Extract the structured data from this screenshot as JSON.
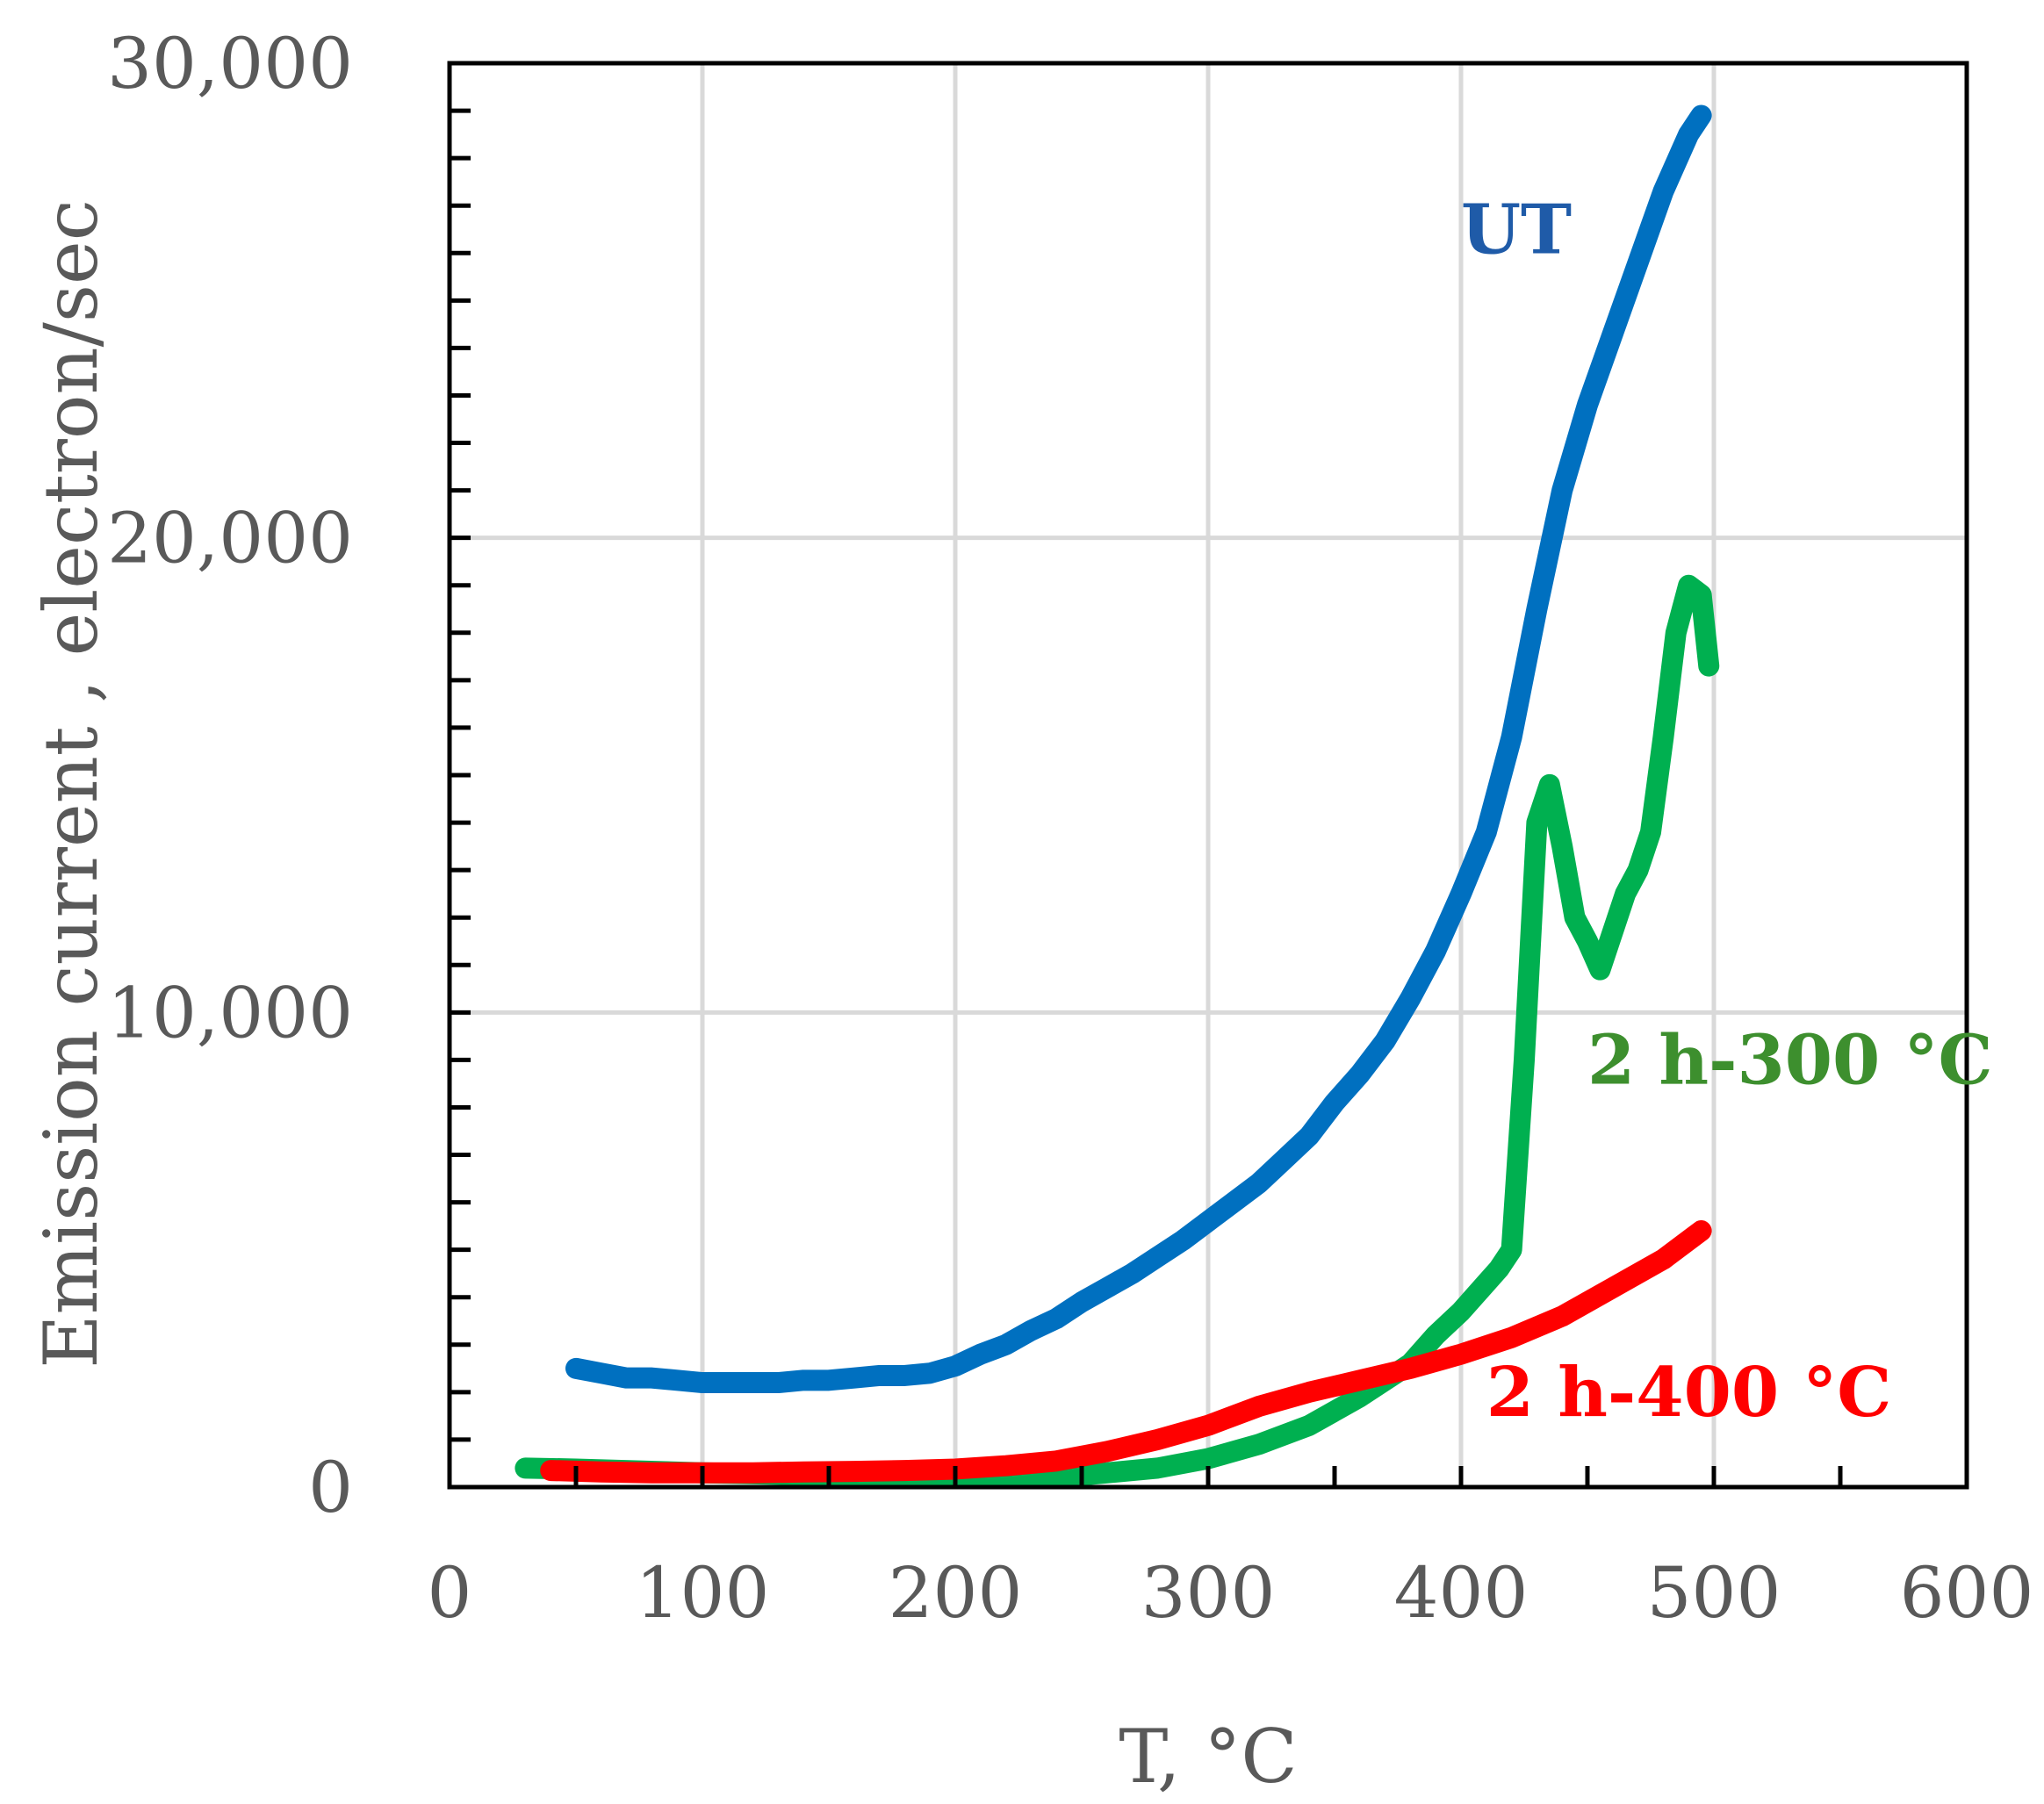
{
  "chart_data": {
    "type": "line",
    "title": "",
    "xlabel": "T, °C",
    "ylabel": "Emission current , electron/sec",
    "xlim": [
      0,
      600
    ],
    "ylim": [
      0,
      30000
    ],
    "x_ticks": [
      0,
      100,
      200,
      300,
      400,
      500,
      600
    ],
    "x_tick_labels": [
      "0",
      "100",
      "200",
      "300",
      "400",
      "500",
      "600"
    ],
    "y_ticks": [
      0,
      10000,
      20000,
      30000
    ],
    "y_tick_labels": [
      "0",
      "10,000",
      "20,000",
      "30,000"
    ],
    "grid": true,
    "legend": "inline labels",
    "series": [
      {
        "name": "UT",
        "color": "#0070C0",
        "label_color": "#1F5BA8",
        "label_anchor": {
          "x": 400,
          "y": 26000
        },
        "x": [
          50,
          60,
          70,
          80,
          90,
          100,
          110,
          120,
          130,
          140,
          150,
          160,
          170,
          180,
          190,
          200,
          210,
          220,
          230,
          240,
          250,
          260,
          270,
          280,
          290,
          300,
          310,
          320,
          330,
          340,
          350,
          360,
          370,
          380,
          390,
          400,
          410,
          420,
          430,
          440,
          450,
          460,
          470,
          480,
          490,
          495
        ],
        "values": [
          2500,
          2400,
          2300,
          2300,
          2250,
          2200,
          2200,
          2200,
          2200,
          2250,
          2250,
          2300,
          2350,
          2350,
          2400,
          2550,
          2800,
          3000,
          3300,
          3550,
          3900,
          4200,
          4500,
          4850,
          5200,
          5600,
          6000,
          6400,
          6900,
          7400,
          8100,
          8700,
          9400,
          10300,
          11300,
          12500,
          13800,
          15800,
          18500,
          21000,
          22800,
          24300,
          25800,
          27300,
          28500,
          28900
        ]
      },
      {
        "name": "2 h-300 °C",
        "color": "#00B050",
        "label_color": "#3D8F2E",
        "label_anchor": {
          "x": 450,
          "y": 8500
        },
        "x": [
          30,
          50,
          100,
          150,
          200,
          250,
          280,
          300,
          320,
          340,
          360,
          380,
          390,
          400,
          410,
          415,
          420,
          425,
          430,
          435,
          440,
          445,
          450,
          455,
          460,
          465,
          470,
          475,
          480,
          485,
          490,
          495,
          498
        ],
        "values": [
          400,
          380,
          300,
          250,
          220,
          250,
          400,
          600,
          900,
          1300,
          1900,
          2600,
          3200,
          3700,
          4300,
          4600,
          5000,
          9000,
          14000,
          14800,
          13500,
          12000,
          11500,
          10900,
          11700,
          12500,
          13000,
          13800,
          15800,
          18000,
          19000,
          18800,
          17300
        ]
      },
      {
        "name": "2 h-400 °C",
        "color": "#FF0000",
        "label_color": "#FF0000",
        "label_anchor": {
          "x": 410,
          "y": 1500
        },
        "x": [
          40,
          60,
          80,
          100,
          120,
          140,
          160,
          180,
          200,
          220,
          240,
          260,
          280,
          300,
          320,
          340,
          360,
          380,
          400,
          420,
          440,
          460,
          480,
          495
        ],
        "values": [
          350,
          320,
          300,
          300,
          300,
          320,
          330,
          350,
          380,
          450,
          550,
          750,
          1000,
          1300,
          1700,
          2000,
          2250,
          2500,
          2800,
          3150,
          3600,
          4200,
          4800,
          5400
        ]
      }
    ]
  }
}
